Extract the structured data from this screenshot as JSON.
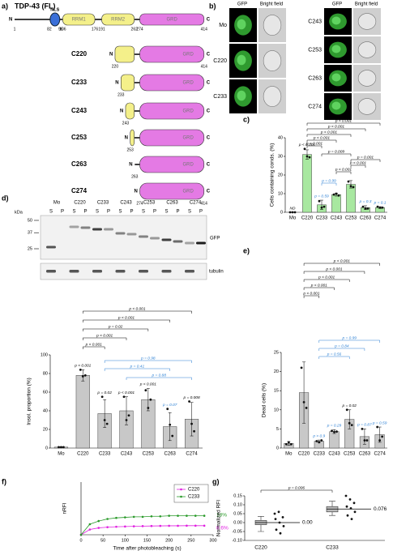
{
  "panel_a": {
    "label": "a)",
    "title": "TDP-43 (FL)",
    "n": "N",
    "c": "C",
    "fl": {
      "start": 1,
      "end": 414
    },
    "domains": [
      {
        "name": "NLS",
        "start": 82,
        "end": 96
      },
      {
        "name": "RRM1",
        "start": 106,
        "end": 176
      },
      {
        "name": "RRM2",
        "start": 191,
        "end": 262
      },
      {
        "name": "GRD",
        "start": 274,
        "end": 414
      }
    ],
    "constructs": [
      {
        "name": "C220",
        "start": 220,
        "end": 414
      },
      {
        "name": "C233",
        "start": 233
      },
      {
        "name": "C243",
        "start": 243
      },
      {
        "name": "C253",
        "start": 253
      },
      {
        "name": "C263",
        "start": 263
      },
      {
        "name": "C274",
        "start": 274,
        "end": 414
      }
    ]
  },
  "panel_b": {
    "label": "b)",
    "channels": [
      "GFP",
      "Bright field"
    ],
    "left_rows": [
      "Mo",
      "C220",
      "C233"
    ],
    "right_rows": [
      "C243",
      "C253",
      "C263",
      "C274"
    ]
  },
  "panel_d_blot": {
    "label": "d)",
    "kda": "kDa",
    "markers": [
      50,
      37,
      25
    ],
    "lanes": [
      "Mo",
      "C220",
      "C233",
      "C243",
      "C253",
      "C263",
      "C274"
    ],
    "fractions": [
      "S",
      "P"
    ],
    "blot_label": "GFP",
    "loading_label": "tubulin"
  },
  "chart_data": [
    {
      "type": "bar",
      "panel_label": "c)",
      "ylabel": "Cells containing conds. (%)",
      "categories": [
        "Mo",
        "C220",
        "C233",
        "C243",
        "C253",
        "C263",
        "C274"
      ],
      "values": [
        0,
        31,
        4,
        9.5,
        15,
        2.5,
        2.5
      ],
      "errors": [
        0,
        2.5,
        2.5,
        0.8,
        2,
        1,
        0.5
      ],
      "points": [
        [
          0,
          0,
          0
        ],
        [
          34,
          30,
          29.5
        ],
        [
          6,
          2.5,
          3
        ],
        [
          9.5,
          10,
          9
        ],
        [
          16.5,
          14,
          13.5
        ],
        [
          3,
          2,
          2
        ],
        [
          3,
          2.5,
          2.5
        ]
      ],
      "color": "#a8e8a0",
      "ylim": [
        0,
        40
      ],
      "yticks": [
        0,
        10,
        20,
        30,
        40
      ],
      "notes": [
        "ND",
        "p < 0.001",
        "p = 0.59",
        null,
        null,
        "p = 0.3",
        "p = 0.1"
      ],
      "note_colors": [
        "#000000",
        "#000000",
        "#2a7fd4",
        null,
        null,
        "#2a7fd4",
        "#2a7fd4"
      ],
      "brackets": [
        {
          "from": "C220",
          "to": "C274",
          "text": "p < 0.001",
          "color": "#000000"
        },
        {
          "from": "C220",
          "to": "C263",
          "text": "p < 0.001",
          "color": "#000000"
        },
        {
          "from": "C220",
          "to": "C253",
          "text": "p < 0.001",
          "color": "#000000"
        },
        {
          "from": "C220",
          "to": "C243",
          "text": "p < 0.001",
          "color": "#000000"
        },
        {
          "from": "C220",
          "to": "C233",
          "text": "p < 0.001",
          "color": "#000000"
        },
        {
          "from": "C233",
          "to": "C253",
          "text": "p = 0.009",
          "color": "#000000"
        },
        {
          "from": "C233",
          "to": "C243",
          "text": "p = 0.99",
          "color": "#2a7fd4"
        },
        {
          "from": "C243",
          "to": "C253",
          "text": "p < 0.001",
          "color": "#000000"
        },
        {
          "from": "C253",
          "to": "C263",
          "text": "p < 0.001",
          "color": "#000000"
        },
        {
          "from": "C253",
          "to": "C274",
          "text": "p = 0.001",
          "color": "#000000"
        }
      ]
    },
    {
      "type": "bar",
      "ylabel": "Insol. proportion (%)",
      "categories": [
        "Mo",
        "C220",
        "C233",
        "C243",
        "C253",
        "C263",
        "C274"
      ],
      "values": [
        1,
        78,
        37,
        40,
        52,
        23,
        31
      ],
      "errors": [
        0.5,
        6,
        15,
        15,
        12,
        15,
        18
      ],
      "points": [
        [
          1,
          1,
          1
        ],
        [
          84,
          77,
          78
        ],
        [
          55,
          30,
          26
        ],
        [
          55,
          30,
          35
        ],
        [
          62,
          43,
          52
        ],
        [
          42,
          25,
          13
        ],
        [
          50,
          26,
          18
        ]
      ],
      "color": "#c8c8c8",
      "ylim": [
        0,
        100
      ],
      "yticks": [
        0,
        20,
        40,
        60,
        80,
        100
      ],
      "notes": [
        null,
        "p < 0.001",
        "p = 0.02",
        "p < 0.001",
        "p < 0.001",
        "p = 0.07",
        "p = 0.008"
      ],
      "note_colors": [
        null,
        "#000000",
        "#000000",
        "#000000",
        "#000000",
        "#2a7fd4",
        "#000000"
      ],
      "brackets": [
        {
          "from": "C220",
          "to": "C274",
          "text": "p < 0.001",
          "color": "#000000"
        },
        {
          "from": "C220",
          "to": "C263",
          "text": "p < 0.001",
          "color": "#000000"
        },
        {
          "from": "C220",
          "to": "C253",
          "text": "p = 0.02",
          "color": "#000000"
        },
        {
          "from": "C220",
          "to": "C243",
          "text": "p < 0.001",
          "color": "#000000"
        },
        {
          "from": "C220",
          "to": "C233",
          "text": "p < 0.001",
          "color": "#000000"
        },
        {
          "from": "C233",
          "to": "C274",
          "text": "p = 0.98",
          "color": "#2a7fd4"
        },
        {
          "from": "C233",
          "to": "C263",
          "text": "p = 0.41",
          "color": "#2a7fd4"
        },
        {
          "from": "C243",
          "to": "C274",
          "text": "p = 0.88",
          "color": "#2a7fd4"
        }
      ]
    },
    {
      "type": "bar",
      "panel_label": "e)",
      "ylabel": "Dead cells (%)",
      "categories": [
        "Mo",
        "C220",
        "C233",
        "C243",
        "C253",
        "C263",
        "C274"
      ],
      "values": [
        1.2,
        14.5,
        1.8,
        4.3,
        7.5,
        3,
        3.5
      ],
      "errors": [
        0.5,
        8,
        0.3,
        0.5,
        2.5,
        2,
        2
      ],
      "points": [
        [
          1,
          1.5,
          1
        ],
        [
          21,
          12,
          10.5
        ],
        [
          1.8,
          1.5,
          2
        ],
        [
          4.5,
          4.2,
          4.3
        ],
        [
          10,
          6.5,
          6
        ],
        [
          5,
          2,
          2
        ],
        [
          5.5,
          2,
          3
        ]
      ],
      "color": "#c8c8c8",
      "ylim": [
        0,
        25
      ],
      "yticks": [
        0,
        5,
        10,
        15,
        20,
        25
      ],
      "notes": [
        null,
        null,
        "p > 0.9",
        "p = 0.29",
        "p = 0.02",
        "p = 0.87",
        "p = 0.59"
      ],
      "note_colors": [
        null,
        null,
        "#2a7fd4",
        "#2a7fd4",
        "#000000",
        "#2a7fd4",
        "#2a7fd4"
      ],
      "brackets": [
        {
          "from": "C220",
          "to": "C274",
          "text": "p < 0.001",
          "color": "#000000"
        },
        {
          "from": "C220",
          "to": "C263",
          "text": "p < 0.001",
          "color": "#000000"
        },
        {
          "from": "C220",
          "to": "C253",
          "text": "p < 0.001",
          "color": "#000000"
        },
        {
          "from": "C220",
          "to": "C243",
          "text": "p < 0.001",
          "color": "#000000"
        },
        {
          "from": "C220",
          "to": "C233",
          "text": "p < 0.001",
          "color": "#000000"
        },
        {
          "from": "C233",
          "to": "C274",
          "text": "p = 0.99",
          "color": "#2a7fd4"
        },
        {
          "from": "C233",
          "to": "C263",
          "text": "p = 0.84",
          "color": "#2a7fd4"
        },
        {
          "from": "C233",
          "to": "C253",
          "text": "p = 0.56",
          "color": "#2a7fd4"
        }
      ]
    },
    {
      "type": "line",
      "panel_label": "f)",
      "ylabel": "nRFI",
      "xlabel": "Time after photobleaching (s)",
      "x": [
        0,
        20,
        40,
        60,
        80,
        100,
        120,
        140,
        160,
        180,
        200,
        220,
        240,
        260,
        280
      ],
      "series": [
        {
          "name": "C220",
          "color": "#e020e0",
          "end_label": "8.6%",
          "values": [
            0,
            0.05,
            0.065,
            0.072,
            0.076,
            0.078,
            0.08,
            0.082,
            0.083,
            0.084,
            0.085,
            0.085,
            0.086,
            0.086,
            0.086
          ]
        },
        {
          "name": "C233",
          "color": "#2a9a2a",
          "end_label": "18%",
          "values": [
            0,
            0.1,
            0.13,
            0.15,
            0.16,
            0.165,
            0.17,
            0.17,
            0.175,
            0.175,
            0.18,
            0.18,
            0.18,
            0.18,
            0.18
          ]
        }
      ],
      "xlim": [
        0,
        300
      ],
      "xticks": [
        0,
        50,
        100,
        150,
        200,
        250,
        300
      ],
      "ylim": [
        0,
        0.5
      ],
      "legend": "upper right"
    },
    {
      "type": "box",
      "panel_label": "g)",
      "ylabel": "Normalized RFI",
      "categories": [
        "C220",
        "C233"
      ],
      "color": "#bbbbbb",
      "boxes": [
        {
          "min": -0.05,
          "q1": -0.012,
          "median": 0,
          "q3": 0.012,
          "max": 0.035,
          "median_label": "0.00"
        },
        {
          "min": 0.04,
          "q1": 0.06,
          "median": 0.076,
          "q3": 0.09,
          "max": 0.12,
          "median_label": "0.076"
        }
      ],
      "points": [
        [
          0.05,
          0.06,
          0.03,
          0.02,
          0,
          -0.02,
          -0.04,
          -0.06
        ],
        [
          0.15,
          0.13,
          0.11,
          0.09,
          0.08,
          0.06,
          0.04,
          0.02
        ]
      ],
      "ylim": [
        -0.1,
        0.15
      ],
      "yticks": [
        {
          "value": -0.1,
          "label": "-0.10"
        },
        {
          "value": -0.05,
          "label": "-0.05"
        },
        {
          "value": 0,
          "label": "0.00"
        },
        {
          "value": 0.05,
          "label": "0.05"
        },
        {
          "value": 0.1,
          "label": "0.10"
        },
        {
          "value": 0.15,
          "label": "0.15"
        }
      ],
      "brackets": [
        {
          "from": "C220",
          "to": "C233",
          "text": "p = 0.006",
          "color": "#000000"
        }
      ]
    }
  ]
}
